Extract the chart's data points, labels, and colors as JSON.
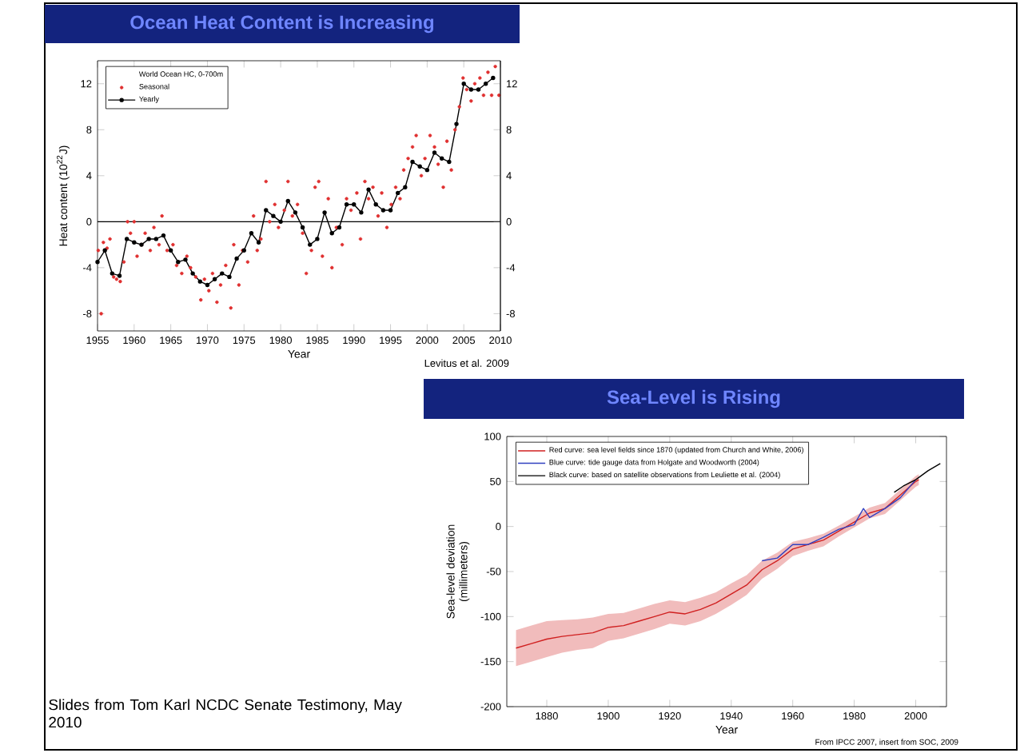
{
  "chart_data": [
    {
      "type": "line",
      "title": "Ocean Heat Content is Increasing",
      "xlabel": "Year",
      "ylabel": "Heat content (10$^{22}$J)",
      "legend_title": "World Ocean HC, 0-700m",
      "annotations": [
        "Levitus et al. 2009"
      ],
      "legend": "top left",
      "xlim": [
        1955,
        2010
      ],
      "xticks": [
        1955,
        1960,
        1965,
        1970,
        1975,
        1980,
        1985,
        1990,
        1995,
        2000,
        2005,
        2010
      ],
      "ylim": [
        -9.5,
        14
      ],
      "yticks": [
        -8,
        -4,
        0,
        4,
        8,
        12
      ],
      "y2lim": [
        -9.5,
        14
      ],
      "y2ticks": [
        -8,
        -4,
        0,
        4,
        8,
        12
      ],
      "ref_lines": [
        {
          "axis": "y",
          "value": 0,
          "color": "#000000"
        }
      ],
      "series": [
        {
          "name": "Seasonal",
          "type": "scatter",
          "color": "#e03030",
          "marker": "circle",
          "x": [
            1955.1,
            1955.5,
            1955.8,
            1956.3,
            1956.7,
            1957.2,
            1957.6,
            1958.1,
            1958.6,
            1959.1,
            1959.5,
            1960.0,
            1960.4,
            1961.0,
            1961.5,
            1962.2,
            1962.7,
            1963.4,
            1963.8,
            1964.5,
            1965.3,
            1965.8,
            1966.5,
            1967.2,
            1967.7,
            1968.4,
            1969.1,
            1969.6,
            1970.2,
            1970.7,
            1971.3,
            1971.8,
            1972.5,
            1973.2,
            1973.6,
            1974.3,
            1974.8,
            1975.5,
            1976.3,
            1976.8,
            1977.3,
            1978.0,
            1978.5,
            1979.2,
            1979.7,
            1980.5,
            1981.0,
            1981.6,
            1982.3,
            1983.0,
            1983.5,
            1984.2,
            1984.7,
            1985.2,
            1985.7,
            1986.5,
            1987.0,
            1987.6,
            1988.4,
            1989.0,
            1989.6,
            1990.4,
            1990.9,
            1991.5,
            1992.0,
            1992.6,
            1993.3,
            1993.8,
            1994.5,
            1995.1,
            1995.7,
            1996.3,
            1996.8,
            1997.4,
            1998.0,
            1998.5,
            1999.2,
            1999.7,
            2000.4,
            2001.0,
            2001.5,
            2002.2,
            2002.7,
            2003.3,
            2003.8,
            2004.4,
            2004.9,
            2005.4,
            2006.0,
            2006.5,
            2007.2,
            2007.7,
            2008.3,
            2008.8,
            2009.3,
            2009.8
          ],
          "values": [
            -2.5,
            -8.0,
            -1.8,
            -2.3,
            -1.5,
            -4.8,
            -5.0,
            -5.2,
            -3.5,
            0.0,
            -1.0,
            0.0,
            -3.0,
            -2.0,
            -1.0,
            -2.5,
            -0.5,
            -2.0,
            0.5,
            -2.5,
            -2.0,
            -3.8,
            -4.5,
            -3.0,
            -4.0,
            -4.8,
            -6.8,
            -5.0,
            -6.0,
            -4.5,
            -7.0,
            -5.5,
            -3.8,
            -7.5,
            -2.0,
            -5.5,
            -2.5,
            -3.5,
            0.5,
            -2.5,
            -1.5,
            3.5,
            0.0,
            1.5,
            -0.5,
            1.0,
            3.5,
            0.5,
            1.5,
            -1.0,
            -4.5,
            -2.5,
            3.0,
            3.5,
            -3.0,
            2.0,
            -4.0,
            -0.5,
            -2.0,
            2.0,
            1.0,
            2.5,
            -1.5,
            3.5,
            2.0,
            3.0,
            0.5,
            2.5,
            -0.5,
            1.5,
            3.0,
            2.0,
            4.5,
            5.5,
            6.5,
            7.5,
            4.0,
            5.5,
            7.5,
            6.5,
            5.0,
            3.0,
            7.0,
            4.5,
            8.0,
            10.0,
            12.5,
            11.5,
            10.5,
            12.0,
            12.5,
            11.0,
            13.0,
            11.0,
            13.5,
            11.0
          ]
        },
        {
          "name": "Yearly",
          "color": "#000000",
          "marker": "circle",
          "x": [
            1955,
            1956,
            1957,
            1958,
            1959,
            1960,
            1961,
            1962,
            1963,
            1964,
            1965,
            1966,
            1967,
            1968,
            1969,
            1970,
            1971,
            1972,
            1973,
            1974,
            1975,
            1976,
            1977,
            1978,
            1979,
            1980,
            1981,
            1982,
            1983,
            1984,
            1985,
            1986,
            1987,
            1988,
            1989,
            1990,
            1991,
            1992,
            1993,
            1994,
            1995,
            1996,
            1997,
            1998,
            1999,
            2000,
            2001,
            2002,
            2003,
            2004,
            2005,
            2006,
            2007,
            2008,
            2009
          ],
          "values": [
            -3.5,
            -2.5,
            -4.5,
            -4.7,
            -1.5,
            -1.8,
            -2.0,
            -1.5,
            -1.5,
            -1.2,
            -2.5,
            -3.5,
            -3.3,
            -4.5,
            -5.2,
            -5.5,
            -5.0,
            -4.5,
            -4.8,
            -3.2,
            -2.5,
            -1.0,
            -1.8,
            1.0,
            0.5,
            0.0,
            1.8,
            0.8,
            -0.5,
            -2.0,
            -1.5,
            0.8,
            -1.0,
            -0.5,
            1.5,
            1.5,
            0.8,
            2.8,
            1.5,
            1.0,
            1.0,
            2.5,
            3.0,
            5.2,
            4.8,
            4.5,
            6.0,
            5.5,
            5.2,
            8.5,
            12.0,
            11.5,
            11.5,
            12.0,
            12.5
          ]
        }
      ]
    },
    {
      "type": "line",
      "title": "Sea-Level is Rising",
      "xlabel": "Year",
      "ylabel": "Sea-level deviation (millimeters)",
      "annotations": [
        "From IPCC 2007, insert from SOC, 2009",
        "Slides from Tom Karl NCDC Senate Testimony, May 2010"
      ],
      "legend": "top left",
      "xlim": [
        1867,
        2010
      ],
      "xticks": [
        1880,
        1900,
        1920,
        1940,
        1960,
        1980,
        2000
      ],
      "ylim": [
        -200,
        100
      ],
      "yticks": [
        -200,
        -150,
        -100,
        -50,
        0,
        50,
        100
      ],
      "series": [
        {
          "name": "Red curve: sea level fields since 1870 (updated from Church and White, 2006)",
          "color": "#d02020",
          "x": [
            1870,
            1875,
            1880,
            1885,
            1890,
            1895,
            1900,
            1905,
            1910,
            1915,
            1920,
            1925,
            1930,
            1935,
            1940,
            1945,
            1950,
            1955,
            1960,
            1965,
            1970,
            1975,
            1980,
            1985,
            1990,
            1995,
            2000,
            2001
          ],
          "values": [
            -135,
            -130,
            -125,
            -122,
            -120,
            -118,
            -112,
            -110,
            -105,
            -100,
            -95,
            -97,
            -92,
            -85,
            -75,
            -65,
            -48,
            -38,
            -25,
            -20,
            -15,
            -5,
            5,
            15,
            20,
            35,
            50,
            52
          ],
          "lower": [
            -155,
            -150,
            -145,
            -140,
            -137,
            -135,
            -127,
            -124,
            -119,
            -114,
            -108,
            -110,
            -105,
            -97,
            -87,
            -76,
            -58,
            -47,
            -33,
            -27,
            -22,
            -11,
            -1,
            9,
            14,
            29,
            44,
            46
          ],
          "upper": [
            -115,
            -110,
            -105,
            -104,
            -103,
            -101,
            -97,
            -96,
            -91,
            -86,
            -82,
            -84,
            -79,
            -73,
            -63,
            -54,
            -38,
            -29,
            -17,
            -13,
            -8,
            1,
            11,
            21,
            26,
            41,
            56,
            58
          ]
        },
        {
          "name": "Blue curve: tide gauge data from Holgate and Woodworth (2004)",
          "color": "#3040c0",
          "x": [
            1950,
            1955,
            1960,
            1965,
            1970,
            1975,
            1980,
            1983,
            1985,
            1990,
            1995,
            2000
          ],
          "values": [
            -38,
            -35,
            -20,
            -20,
            -12,
            -3,
            2,
            20,
            10,
            20,
            32,
            52
          ]
        },
        {
          "name": "Black curve: based on satellite observations from Leuliette et al. (2004)",
          "color": "#000000",
          "x": [
            1993,
            1996,
            2000,
            2004,
            2008
          ],
          "values": [
            38,
            45,
            52,
            62,
            70
          ]
        }
      ]
    }
  ]
}
